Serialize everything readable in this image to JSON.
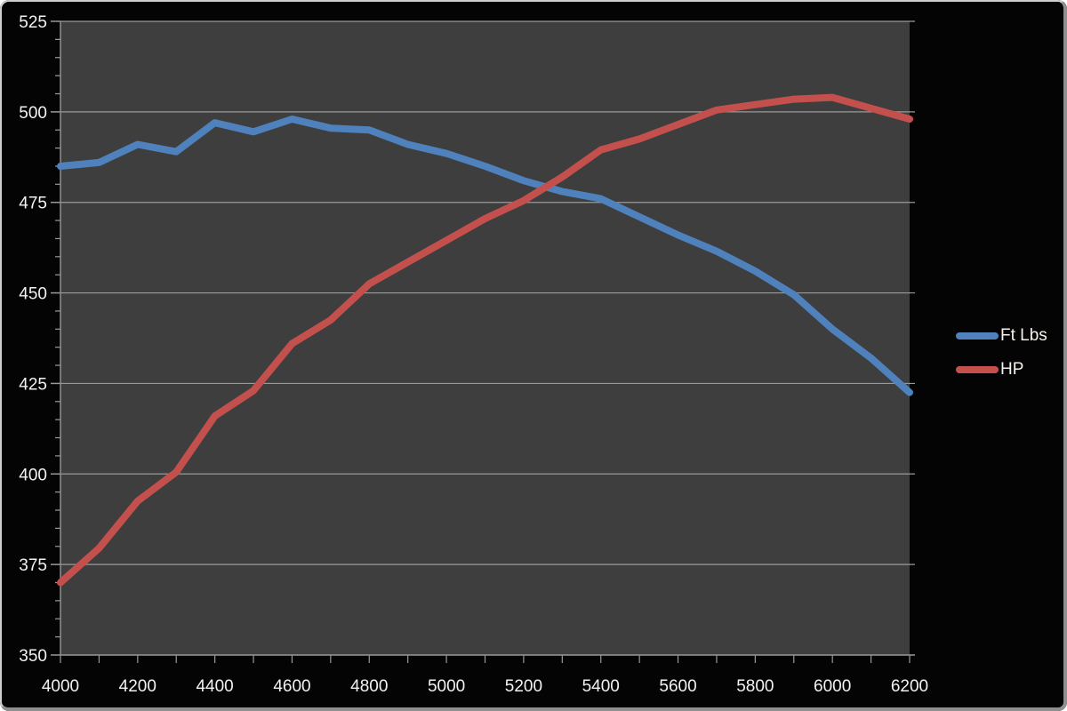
{
  "chart_data": {
    "type": "line",
    "title": "",
    "xlabel": "",
    "ylabel": "",
    "x": [
      4000,
      4100,
      4200,
      4300,
      4400,
      4500,
      4600,
      4700,
      4800,
      4900,
      5000,
      5100,
      5200,
      5300,
      5400,
      5500,
      5600,
      5700,
      5800,
      5900,
      6000,
      6100,
      6200
    ],
    "series": [
      {
        "name": "Ft Lbs",
        "color": "#4F81BD",
        "values": [
          485,
          486,
          491,
          489,
          497,
          494.5,
          498,
          495.5,
          495,
          491,
          488.5,
          485,
          481,
          478,
          476,
          471,
          466,
          461.5,
          456,
          449.5,
          440,
          432,
          422.5
        ]
      },
      {
        "name": "HP",
        "color": "#C4504E",
        "values": [
          370,
          379.5,
          392.5,
          400.5,
          416,
          423,
          436,
          442.5,
          452.5,
          458.5,
          464.5,
          470.5,
          475.5,
          482,
          489.5,
          492.5,
          496.5,
          500.5,
          502,
          503.5,
          504,
          501,
          498
        ]
      }
    ],
    "xlim": [
      4000,
      6200
    ],
    "ylim": [
      350,
      525
    ],
    "x_tick_label_step": 200,
    "x_tick_minor_step": 100,
    "y_tick_label_step": 25,
    "y_tick_minor_step": 5,
    "x_tick_labels": [
      "4000",
      "4200",
      "4400",
      "4600",
      "4800",
      "5000",
      "5200",
      "5400",
      "5600",
      "5800",
      "6000",
      "6200"
    ],
    "y_tick_labels": [
      "350",
      "375",
      "400",
      "425",
      "450",
      "475",
      "500",
      "525"
    ],
    "grid": "horizontal-major",
    "legend_position": "right-middle"
  },
  "colors": {
    "outer_background": "#040404",
    "plot_background": "#3E3E3E",
    "gridline": "#9A9A9A",
    "axis_line": "#909090",
    "tick_label": "#F2F2F2",
    "legend_text": "#F5F2EC",
    "frame_border_light": "#CFCFCF",
    "frame_border_dark": "#8F8F8F"
  }
}
